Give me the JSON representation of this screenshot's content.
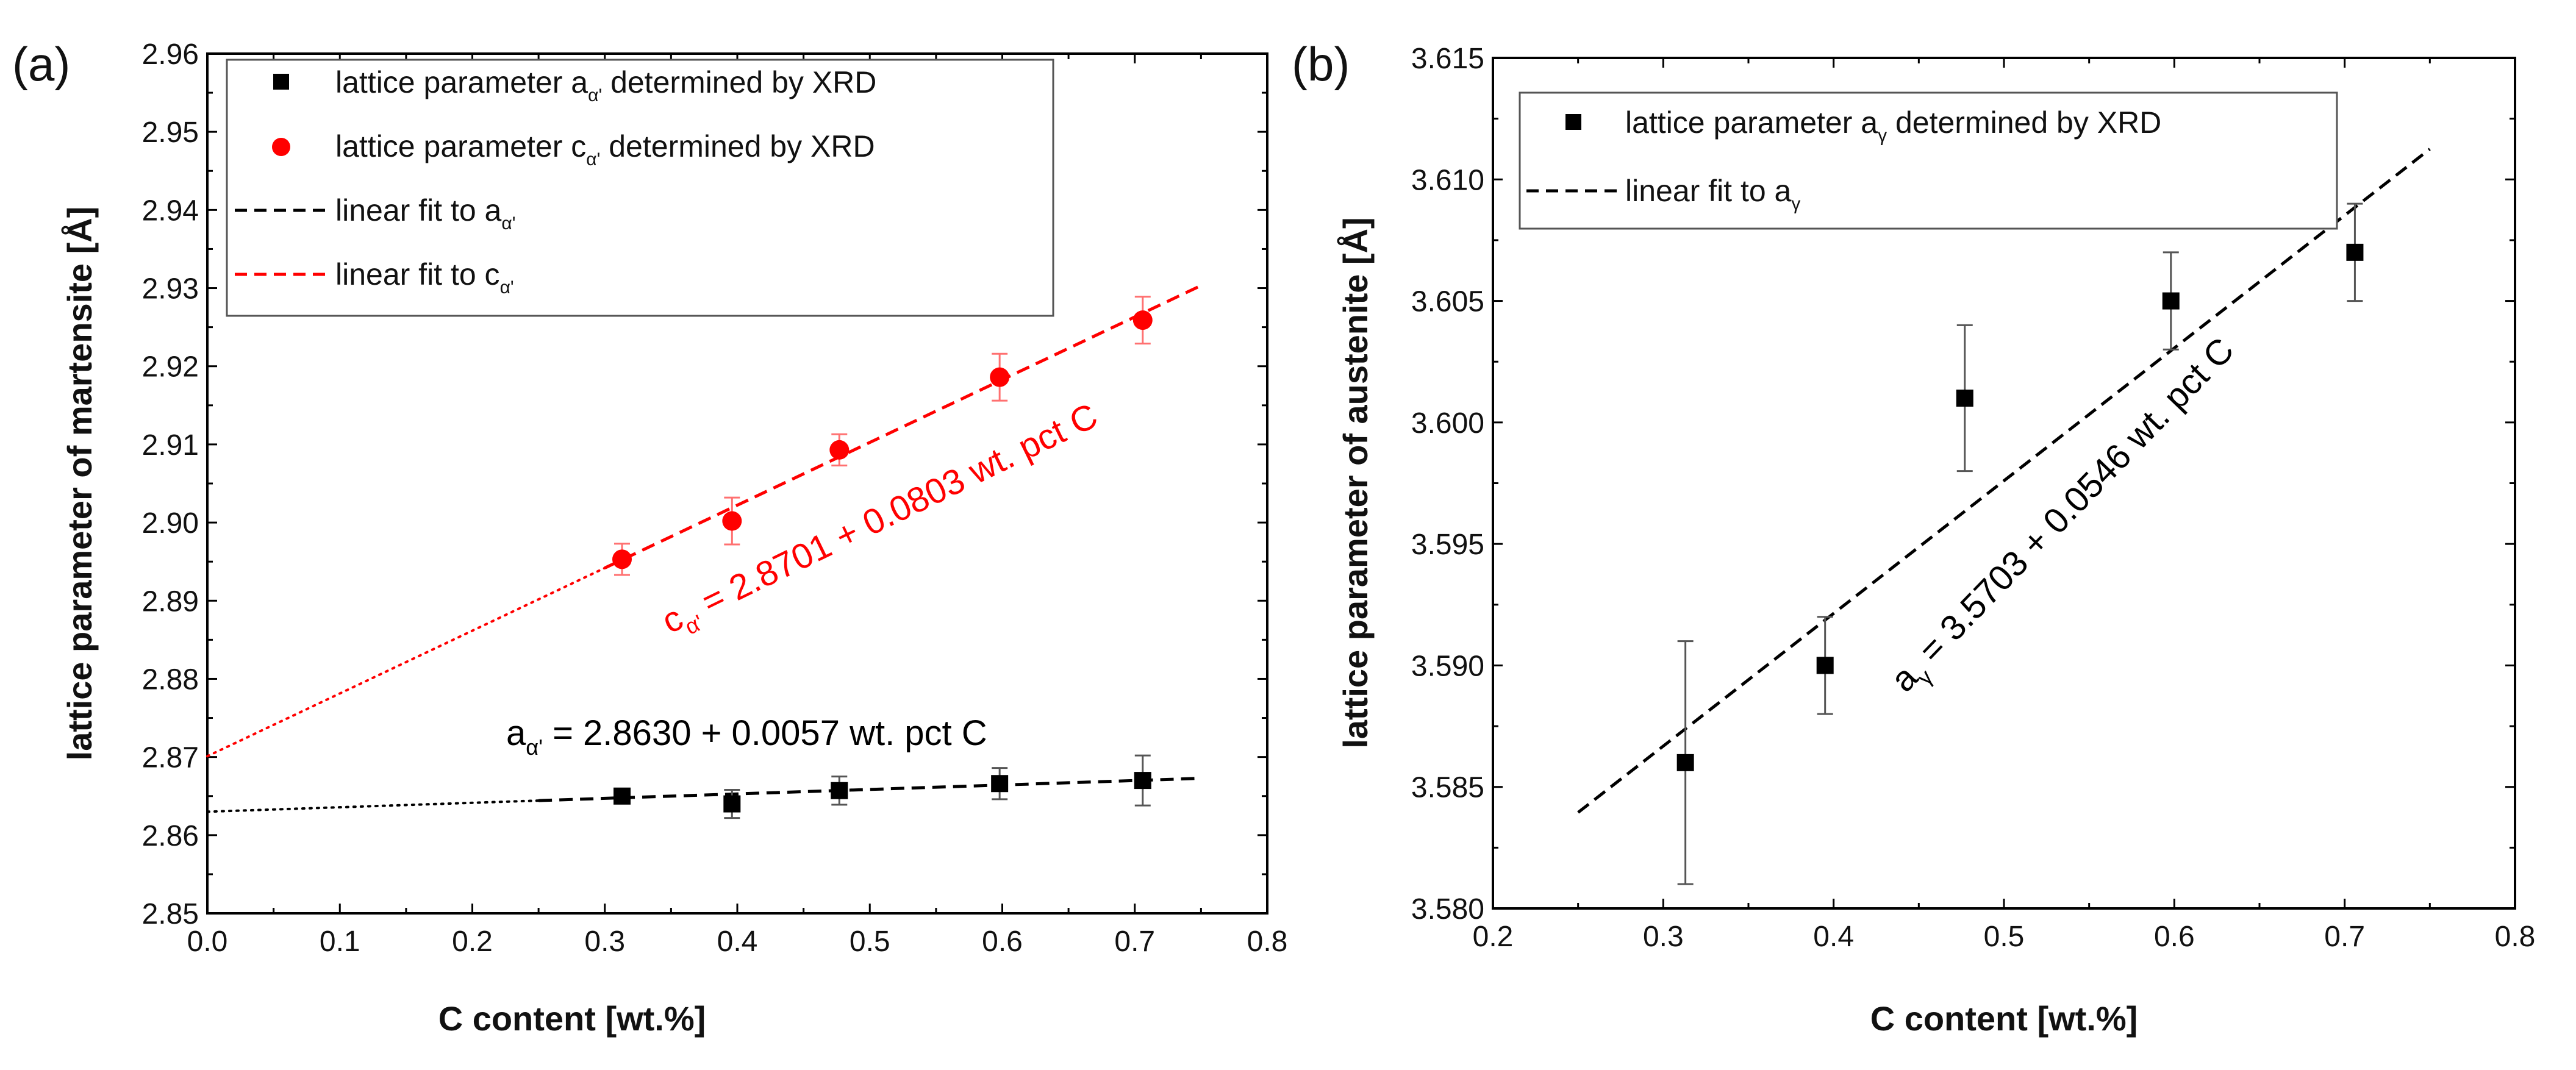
{
  "chart_data": [
    {
      "panel_label": "(a)",
      "type": "scatter",
      "xlabel": "C content [wt.%]",
      "ylabel": "lattice parameter of martensite [Å]",
      "xlim": [
        0.0,
        0.8
      ],
      "ylim": [
        2.85,
        2.96
      ],
      "xticks": [
        "0.0",
        "0.1",
        "0.2",
        "0.3",
        "0.4",
        "0.5",
        "0.6",
        "0.7",
        "0.8"
      ],
      "yticks": [
        "2.85",
        "2.86",
        "2.87",
        "2.88",
        "2.89",
        "2.90",
        "2.91",
        "2.92",
        "2.93",
        "2.94",
        "2.95",
        "2.96"
      ],
      "grid": false,
      "legend": {
        "placement": "top-left",
        "entries": [
          {
            "text": "lattice parameter a",
            "sub": "α'",
            "suffix": " determined by XRD",
            "marker": "square",
            "color": "#000000"
          },
          {
            "text": "lattice parameter c",
            "sub": "α'",
            "suffix": " determined by XRD",
            "marker": "circle",
            "color": "#ff0000"
          },
          {
            "text": "linear fit to a",
            "sub": "α'",
            "suffix": "",
            "marker": "dash",
            "color": "#000000"
          },
          {
            "text": "linear fit to c",
            "sub": "α'",
            "suffix": "",
            "marker": "dash",
            "color": "#ff0000"
          }
        ]
      },
      "series": [
        {
          "name": "lattice parameter a_α' determined by XRD",
          "marker": "square",
          "color": "#000000",
          "x": [
            0.313,
            0.396,
            0.477,
            0.598,
            0.706
          ],
          "y": [
            2.865,
            2.864,
            2.8657,
            2.8666,
            2.867
          ],
          "yerr": [
            0.0005,
            0.0018,
            0.0018,
            0.002,
            0.0032
          ]
        },
        {
          "name": "lattice parameter c_α' determined by XRD",
          "marker": "circle",
          "color": "#ff0000",
          "x": [
            0.313,
            0.396,
            0.477,
            0.598,
            0.706
          ],
          "y": [
            2.8953,
            2.9002,
            2.9093,
            2.9186,
            2.9259
          ],
          "yerr": [
            0.002,
            0.003,
            0.002,
            0.003,
            0.003
          ]
        }
      ],
      "fits": [
        {
          "name": "linear fit to a_α'",
          "intercept": 2.863,
          "slope": 0.0057,
          "color": "#000000",
          "dotted_range": [
            0.0,
            0.25
          ],
          "dashed_range": [
            0.25,
            0.75
          ]
        },
        {
          "name": "linear fit to c_α'",
          "intercept": 2.8701,
          "slope": 0.0803,
          "color": "#ff0000",
          "dotted_range": [
            0.0,
            0.3
          ],
          "dashed_range": [
            0.3,
            0.75
          ]
        }
      ],
      "annotations": [
        {
          "main": "a",
          "sub": "α'",
          "rest": " = 2.8630 + 0.0057 wt. pct C",
          "color": "#000000",
          "rotation": 0
        },
        {
          "main": "c",
          "sub": "α'",
          "rest": " = 2.8701 + 0.0803 wt. pct C",
          "color": "#ff0000",
          "rotation": -26
        }
      ]
    },
    {
      "panel_label": "(b)",
      "type": "scatter",
      "xlabel": "C content [wt.%]",
      "ylabel": "lattice parameter of austenite [Å]",
      "xlim": [
        0.2,
        0.8
      ],
      "ylim": [
        3.58,
        3.615
      ],
      "xticks": [
        "0.2",
        "0.3",
        "0.4",
        "0.5",
        "0.6",
        "0.7",
        "0.8"
      ],
      "yticks": [
        "3.580",
        "3.585",
        "3.590",
        "3.595",
        "3.600",
        "3.605",
        "3.610",
        "3.615"
      ],
      "grid": false,
      "legend": {
        "placement": "top-left",
        "entries": [
          {
            "text": "lattice parameter a",
            "sub": "γ",
            "suffix": " determined by XRD",
            "marker": "square",
            "color": "#000000"
          },
          {
            "text": "linear fit to a",
            "sub": "γ",
            "suffix": "",
            "marker": "dash",
            "color": "#000000"
          }
        ]
      },
      "series": [
        {
          "name": "lattice parameter a_γ determined by XRD",
          "marker": "square",
          "color": "#000000",
          "x": [
            0.313,
            0.395,
            0.477,
            0.598,
            0.706
          ],
          "y": [
            3.586,
            3.59,
            3.601,
            3.605,
            3.607
          ],
          "yerr": [
            0.005,
            0.002,
            0.003,
            0.002,
            0.002
          ]
        }
      ],
      "fits": [
        {
          "name": "linear fit to a_γ",
          "intercept": 3.5703,
          "slope": 0.0546,
          "color": "#000000",
          "dashed_range": [
            0.25,
            0.75
          ]
        }
      ],
      "annotations": [
        {
          "main": "a",
          "sub": "γ",
          "rest": " = 3.5703 + 0.0546 wt. pct C",
          "color": "#000000",
          "rotation": -46
        }
      ]
    }
  ]
}
